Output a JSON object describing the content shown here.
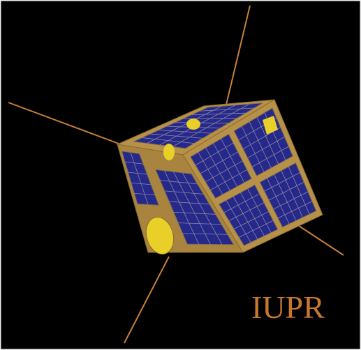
{
  "label": "IUPR"
}
